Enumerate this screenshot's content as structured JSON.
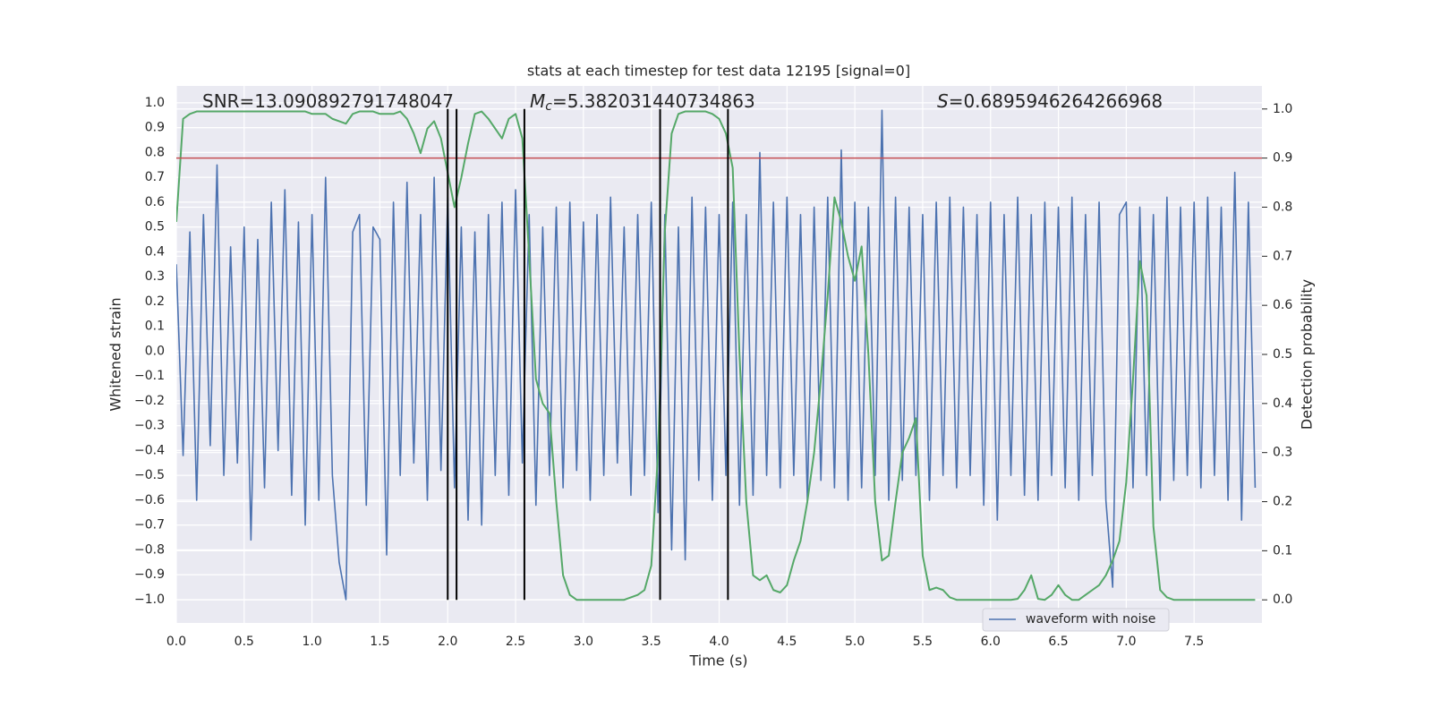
{
  "chart_data": {
    "type": "line",
    "title": "stats at each timestep for test data 12195 [signal=0]",
    "xlabel": "Time (s)",
    "ylabel": "Whitened strain",
    "y2label": "Detection probability",
    "annotations": [
      {
        "rest": "SNR=13.090892791748047"
      },
      {
        "italic": "M",
        "sub": "c",
        "rest": "=5.382031440734863"
      },
      {
        "italic": "S",
        "rest": "=0.6895946264266968"
      }
    ],
    "xlim": [
      0,
      8
    ],
    "ylim": [
      -1.094,
      1.068
    ],
    "y2lim": [
      -0.047,
      1.047
    ],
    "grid": true,
    "legend": "lower right",
    "xticks": [
      {
        "value": 0,
        "label": "0.0"
      },
      {
        "value": 0.5,
        "label": "0.5"
      },
      {
        "value": 1,
        "label": "1.0"
      },
      {
        "value": 1.5,
        "label": "1.5"
      },
      {
        "value": 2,
        "label": "2.0"
      },
      {
        "value": 2.5,
        "label": "2.5"
      },
      {
        "value": 3,
        "label": "3.0"
      },
      {
        "value": 3.5,
        "label": "3.5"
      },
      {
        "value": 4,
        "label": "4.0"
      },
      {
        "value": 4.5,
        "label": "4.5"
      },
      {
        "value": 5,
        "label": "5.0"
      },
      {
        "value": 5.5,
        "label": "5.5"
      },
      {
        "value": 6,
        "label": "6.0"
      },
      {
        "value": 6.5,
        "label": "6.5"
      },
      {
        "value": 7,
        "label": "7.0"
      },
      {
        "value": 7.5,
        "label": "7.5"
      }
    ],
    "yticks": [
      {
        "value": -1,
        "label": "−1.0"
      },
      {
        "value": -0.9,
        "label": "−0.9"
      },
      {
        "value": -0.8,
        "label": "−0.8"
      },
      {
        "value": -0.7,
        "label": "−0.7"
      },
      {
        "value": -0.6,
        "label": "−0.6"
      },
      {
        "value": -0.5,
        "label": "−0.5"
      },
      {
        "value": -0.4,
        "label": "−0.4"
      },
      {
        "value": -0.3,
        "label": "−0.3"
      },
      {
        "value": -0.2,
        "label": "−0.2"
      },
      {
        "value": -0.1,
        "label": "−0.1"
      },
      {
        "value": 0,
        "label": "0.0"
      },
      {
        "value": 0.1,
        "label": "0.1"
      },
      {
        "value": 0.2,
        "label": "0.2"
      },
      {
        "value": 0.3,
        "label": "0.3"
      },
      {
        "value": 0.4,
        "label": "0.4"
      },
      {
        "value": 0.5,
        "label": "0.5"
      },
      {
        "value": 0.6,
        "label": "0.6"
      },
      {
        "value": 0.7,
        "label": "0.7"
      },
      {
        "value": 0.8,
        "label": "0.8"
      },
      {
        "value": 0.9,
        "label": "0.9"
      },
      {
        "value": 1,
        "label": "1.0"
      }
    ],
    "y2ticks": [
      {
        "value": 0,
        "label": "0.0"
      },
      {
        "value": 0.1,
        "label": "0.1"
      },
      {
        "value": 0.2,
        "label": "0.2"
      },
      {
        "value": 0.3,
        "label": "0.3"
      },
      {
        "value": 0.4,
        "label": "0.4"
      },
      {
        "value": 0.5,
        "label": "0.5"
      },
      {
        "value": 0.6,
        "label": "0.6"
      },
      {
        "value": 0.7,
        "label": "0.7"
      },
      {
        "value": 0.8,
        "label": "0.8"
      },
      {
        "value": 0.9,
        "label": "0.9"
      },
      {
        "value": 1,
        "label": "1.0"
      }
    ],
    "x": [
      0,
      0.05,
      0.1,
      0.15,
      0.2,
      0.25,
      0.3,
      0.35,
      0.4,
      0.45,
      0.5,
      0.55,
      0.6,
      0.65,
      0.7,
      0.75,
      0.8,
      0.85,
      0.9,
      0.95,
      1,
      1.05,
      1.1,
      1.15,
      1.2,
      1.25,
      1.3,
      1.35,
      1.4,
      1.45,
      1.5,
      1.55,
      1.6,
      1.65,
      1.7,
      1.75,
      1.8,
      1.85,
      1.9,
      1.95,
      2,
      2.05,
      2.1,
      2.15,
      2.2,
      2.25,
      2.3,
      2.35,
      2.4,
      2.45,
      2.5,
      2.55,
      2.6,
      2.65,
      2.7,
      2.75,
      2.8,
      2.85,
      2.9,
      2.95,
      3,
      3.05,
      3.1,
      3.15,
      3.2,
      3.25,
      3.3,
      3.35,
      3.4,
      3.45,
      3.5,
      3.55,
      3.6,
      3.65,
      3.7,
      3.75,
      3.8,
      3.85,
      3.9,
      3.95,
      4,
      4.05,
      4.1,
      4.15,
      4.2,
      4.25,
      4.3,
      4.35,
      4.4,
      4.45,
      4.5,
      4.55,
      4.6,
      4.65,
      4.7,
      4.75,
      4.8,
      4.85,
      4.9,
      4.95,
      5,
      5.05,
      5.1,
      5.15,
      5.2,
      5.25,
      5.3,
      5.35,
      5.4,
      5.45,
      5.5,
      5.55,
      5.6,
      5.65,
      5.7,
      5.75,
      5.8,
      5.85,
      5.9,
      5.95,
      6,
      6.05,
      6.1,
      6.15,
      6.2,
      6.25,
      6.3,
      6.35,
      6.4,
      6.45,
      6.5,
      6.55,
      6.6,
      6.65,
      6.7,
      6.75,
      6.8,
      6.85,
      6.9,
      6.95,
      7,
      7.05,
      7.1,
      7.15,
      7.2,
      7.25,
      7.3,
      7.35,
      7.4,
      7.45,
      7.5,
      7.55,
      7.6,
      7.65,
      7.7,
      7.75,
      7.8,
      7.85,
      7.9,
      7.95
    ],
    "series": [
      {
        "name": "waveform with noise",
        "color": "#4c72b0",
        "axis": "y",
        "values": [
          0.35,
          -0.42,
          0.48,
          -0.6,
          0.55,
          -0.38,
          0.75,
          -0.5,
          0.42,
          -0.45,
          0.5,
          -0.76,
          0.45,
          -0.55,
          0.6,
          -0.4,
          0.65,
          -0.58,
          0.52,
          -0.7,
          0.55,
          -0.6,
          0.7,
          -0.5,
          -0.85,
          -1.0,
          0.48,
          0.55,
          -0.62,
          0.5,
          0.45,
          -0.82,
          0.6,
          -0.5,
          0.68,
          -0.45,
          0.55,
          -0.6,
          0.7,
          -0.48,
          0.62,
          -0.55,
          0.5,
          -0.68,
          0.48,
          -0.7,
          0.55,
          -0.5,
          0.6,
          -0.58,
          0.65,
          -0.45,
          0.55,
          -0.62,
          0.5,
          -0.5,
          0.58,
          -0.55,
          0.6,
          -0.48,
          0.52,
          -0.6,
          0.55,
          -0.5,
          0.62,
          -0.45,
          0.5,
          -0.58,
          0.55,
          -0.5,
          0.6,
          -0.65,
          0.55,
          -0.8,
          0.5,
          -0.84,
          0.62,
          -0.52,
          0.58,
          -0.6,
          0.55,
          -0.5,
          0.6,
          -0.62,
          0.55,
          -0.58,
          0.8,
          -0.5,
          0.6,
          -0.55,
          0.62,
          -0.5,
          0.55,
          -0.6,
          0.58,
          -0.52,
          0.62,
          -0.55,
          0.81,
          -0.6,
          0.6,
          -0.55,
          0.58,
          -0.5,
          0.97,
          -0.6,
          0.62,
          -0.52,
          0.58,
          -0.5,
          0.55,
          -0.6,
          0.6,
          -0.5,
          0.62,
          -0.55,
          0.58,
          -0.5,
          0.55,
          -0.62,
          0.6,
          -0.68,
          0.55,
          -0.5,
          0.62,
          -0.58,
          0.55,
          -0.6,
          0.6,
          -0.5,
          0.58,
          -0.55,
          0.62,
          -0.6,
          0.55,
          -0.5,
          0.6,
          -0.6,
          -0.95,
          0.55,
          0.6,
          -0.55,
          0.58,
          -0.5,
          0.55,
          -0.6,
          0.62,
          -0.52,
          0.58,
          -0.5,
          0.6,
          -0.55,
          0.62,
          -0.5,
          0.58,
          -0.6,
          0.72,
          -0.68,
          0.6,
          -0.55
        ]
      },
      {
        "color": "#55a868",
        "axis": "y2",
        "values": [
          0.77,
          0.98,
          0.99,
          0.995,
          0.995,
          0.995,
          0.995,
          0.995,
          0.995,
          0.995,
          0.995,
          0.995,
          0.995,
          0.995,
          0.995,
          0.995,
          0.995,
          0.995,
          0.995,
          0.995,
          0.99,
          0.99,
          0.99,
          0.98,
          0.975,
          0.97,
          0.99,
          0.995,
          0.995,
          0.995,
          0.99,
          0.99,
          0.99,
          0.995,
          0.98,
          0.95,
          0.91,
          0.96,
          0.975,
          0.94,
          0.87,
          0.8,
          0.86,
          0.93,
          0.99,
          0.995,
          0.98,
          0.96,
          0.94,
          0.98,
          0.99,
          0.94,
          0.7,
          0.45,
          0.4,
          0.38,
          0.2,
          0.05,
          0.01,
          0,
          0,
          0,
          0,
          0,
          0,
          0,
          0,
          0.005,
          0.01,
          0.02,
          0.07,
          0.3,
          0.75,
          0.95,
          0.99,
          0.995,
          0.995,
          0.995,
          0.995,
          0.99,
          0.98,
          0.95,
          0.88,
          0.5,
          0.2,
          0.05,
          0.04,
          0.05,
          0.02,
          0.015,
          0.03,
          0.08,
          0.12,
          0.2,
          0.3,
          0.45,
          0.62,
          0.82,
          0.77,
          0.7,
          0.65,
          0.72,
          0.5,
          0.2,
          0.08,
          0.09,
          0.2,
          0.3,
          0.33,
          0.37,
          0.09,
          0.02,
          0.025,
          0.02,
          0.005,
          0,
          0,
          0,
          0,
          0,
          0,
          0,
          0,
          0,
          0.002,
          0.02,
          0.05,
          0.002,
          0,
          0.01,
          0.03,
          0.01,
          0,
          0,
          0.01,
          0.02,
          0.03,
          0.05,
          0.08,
          0.12,
          0.24,
          0.45,
          0.69,
          0.62,
          0.15,
          0.02,
          0.005,
          0,
          0,
          0,
          0,
          0,
          0,
          0,
          0,
          0,
          0,
          0,
          0,
          0
        ]
      }
    ],
    "hline": {
      "value": 0.9,
      "axis": "y2",
      "color": "#c44e52"
    },
    "vlines": {
      "x": [
        2.0,
        2.065,
        2.565,
        3.565,
        4.065
      ],
      "ymin": 0,
      "ymax": 1,
      "axis": "y2",
      "color": "#000000"
    }
  }
}
